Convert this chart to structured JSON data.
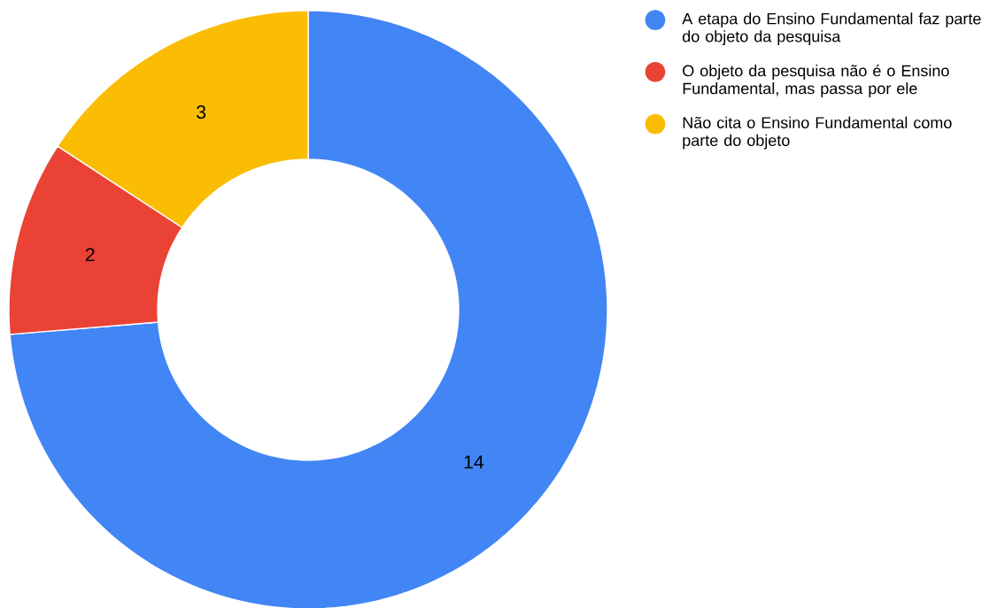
{
  "chart_data": {
    "type": "donut",
    "categories": [
      "A etapa do Ensino Fundamental faz parte do objeto da pesquisa",
      "O objeto da pesquisa não é o Ensino Fundamental, mas passa por ele",
      "Não cita o Ensino Fundamental como parte do objeto"
    ],
    "values": [
      14,
      2,
      3
    ],
    "colors": [
      "#4285f4",
      "#ea4335",
      "#fbbc04"
    ],
    "data_labels": true,
    "legend": "top right"
  }
}
